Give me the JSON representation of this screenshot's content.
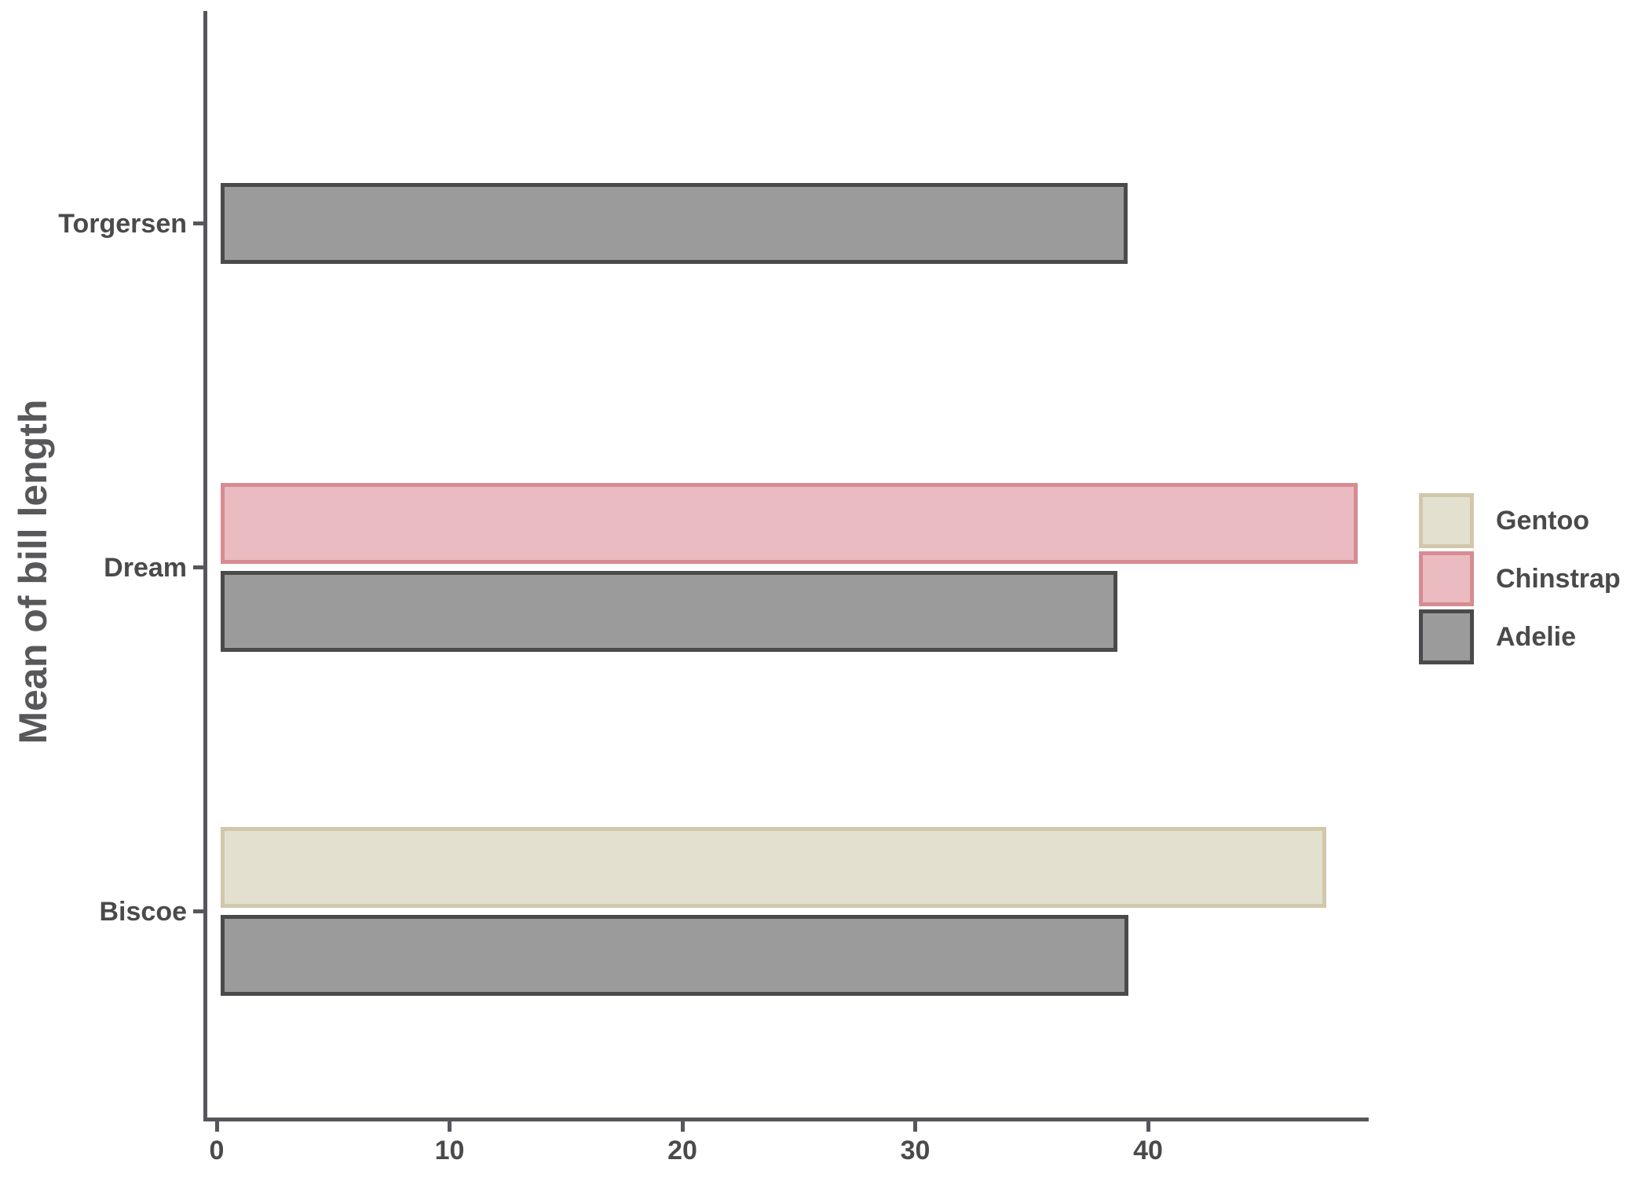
{
  "chart_data": {
    "type": "bar",
    "orientation": "horizontal",
    "title": "",
    "xlabel": "",
    "ylabel": "Mean of bill length",
    "categories": [
      "Torgersen",
      "Dream",
      "Biscoe"
    ],
    "groups": [
      {
        "label": "Torgersen",
        "bars": [
          {
            "species": "Adelie",
            "value": 38.95
          }
        ]
      },
      {
        "label": "Dream",
        "bars": [
          {
            "species": "Chinstrap",
            "value": 48.83
          },
          {
            "species": "Adelie",
            "value": 38.5
          }
        ]
      },
      {
        "label": "Biscoe",
        "bars": [
          {
            "species": "Gentoo",
            "value": 47.5
          },
          {
            "species": "Adelie",
            "value": 38.98
          }
        ]
      }
    ],
    "series": [
      {
        "name": "Gentoo",
        "values": [
          null,
          null,
          47.5
        ]
      },
      {
        "name": "Chinstrap",
        "values": [
          null,
          48.83,
          null
        ]
      },
      {
        "name": "Adelie",
        "values": [
          38.95,
          38.5,
          38.98
        ]
      }
    ],
    "x_ticks": [
      "0",
      "10",
      "20",
      "30",
      "40"
    ],
    "xlim": [
      0,
      49.2
    ],
    "grid": false,
    "legend": {
      "position": "right",
      "entries": [
        {
          "label": "Gentoo",
          "fill": "#e4e0d0",
          "border": "#d1c7aa"
        },
        {
          "label": "Chinstrap",
          "fill": "#eabcc1",
          "border": "#d78b93"
        },
        {
          "label": "Adelie",
          "fill": "#9b9b9b",
          "border": "#4a4a4d"
        }
      ]
    },
    "species_colors": {
      "Gentoo": {
        "fill": "#e4e0d0",
        "border": "#d1c7aa"
      },
      "Chinstrap": {
        "fill": "#eabcc1",
        "border": "#d78b93"
      },
      "Adelie": {
        "fill": "#9b9b9b",
        "border": "#4a4a4d"
      }
    },
    "colors": {
      "spine": "#57575b",
      "tick_label": "#4a4a4a",
      "axis_title": "#58585b",
      "background": "#ffffff"
    }
  }
}
